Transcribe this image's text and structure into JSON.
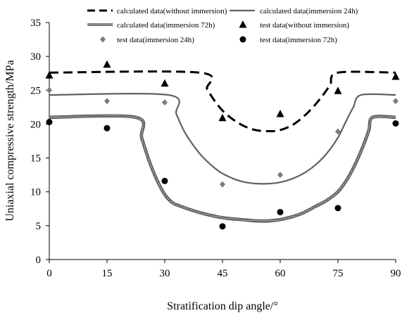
{
  "chart_data": {
    "type": "line",
    "xlabel": "Stratification dip angle/°",
    "ylabel": "Uniaxial compressive strength/MPa",
    "xlim": [
      0,
      90
    ],
    "ylim": [
      0,
      35
    ],
    "x_ticks": [
      0,
      15,
      30,
      45,
      60,
      75,
      90
    ],
    "y_ticks": [
      0,
      5,
      10,
      15,
      20,
      25,
      30,
      35
    ],
    "grid": false,
    "legend_position": "top",
    "series": [
      {
        "name": "calculated data(without immersion)",
        "kind": "line",
        "style": "dashed",
        "color": "#000000",
        "x": [
          0,
          39,
          41,
          43,
          45,
          47,
          49,
          51,
          53,
          55,
          57,
          59,
          61,
          63,
          65,
          67,
          69,
          71,
          73,
          75,
          90
        ],
        "y": [
          27.6,
          27.6,
          25.2,
          23.4,
          22.0,
          21.0,
          20.2,
          19.6,
          19.2,
          19.0,
          18.95,
          19.0,
          19.3,
          19.8,
          20.6,
          21.6,
          22.8,
          24.2,
          25.8,
          27.6,
          27.6
        ]
      },
      {
        "name": "calculated data(immersion 24h)",
        "kind": "line",
        "style": "solid",
        "color": "#606060",
        "x": [
          0,
          31,
          33,
          35,
          37,
          39,
          41,
          43,
          45,
          48,
          51,
          54,
          57,
          60,
          63,
          66,
          69,
          72,
          75,
          77,
          79,
          81,
          90
        ],
        "y": [
          24.3,
          24.3,
          21.5,
          19.0,
          17.2,
          15.7,
          14.5,
          13.5,
          12.7,
          11.9,
          11.4,
          11.2,
          11.2,
          11.4,
          11.9,
          12.7,
          13.9,
          15.6,
          18.0,
          20.3,
          22.5,
          24.3,
          24.3
        ]
      },
      {
        "name": "calculated data(immersion 72h)",
        "kind": "line",
        "style": "textured",
        "color": "#505050",
        "x": [
          0,
          22.5,
          24,
          26,
          28,
          30,
          32,
          34,
          37,
          40,
          43,
          46,
          50,
          54,
          57,
          60,
          63,
          66,
          69,
          72,
          75,
          77,
          79,
          81,
          83,
          84,
          90
        ],
        "y": [
          21.0,
          21.0,
          18.0,
          14.5,
          11.7,
          9.6,
          8.4,
          7.9,
          7.3,
          6.8,
          6.4,
          6.1,
          5.9,
          5.7,
          5.7,
          5.9,
          6.3,
          6.9,
          7.8,
          8.7,
          10.0,
          11.5,
          13.5,
          16.0,
          19.0,
          21.0,
          21.0
        ]
      },
      {
        "name": "test data(without immersion)",
        "kind": "scatter",
        "marker": "triangle",
        "color": "#000000",
        "x": [
          0,
          15,
          30,
          45,
          60,
          75,
          90
        ],
        "y": [
          27.2,
          28.8,
          26.0,
          20.9,
          21.5,
          24.9,
          27.0
        ]
      },
      {
        "name": "test data(immersion 24h)",
        "kind": "scatter",
        "marker": "diamond",
        "color": "#7a7a7a",
        "x": [
          0,
          15,
          30,
          45,
          60,
          75,
          90
        ],
        "y": [
          25.0,
          23.4,
          23.2,
          11.1,
          12.5,
          18.9,
          23.4
        ]
      },
      {
        "name": "test data(immersion 72h)",
        "kind": "scatter",
        "marker": "circle",
        "color": "#000000",
        "x": [
          0,
          15,
          30,
          45,
          60,
          75,
          90
        ],
        "y": [
          20.3,
          19.4,
          11.6,
          4.9,
          7.0,
          7.6,
          20.1
        ]
      }
    ]
  }
}
